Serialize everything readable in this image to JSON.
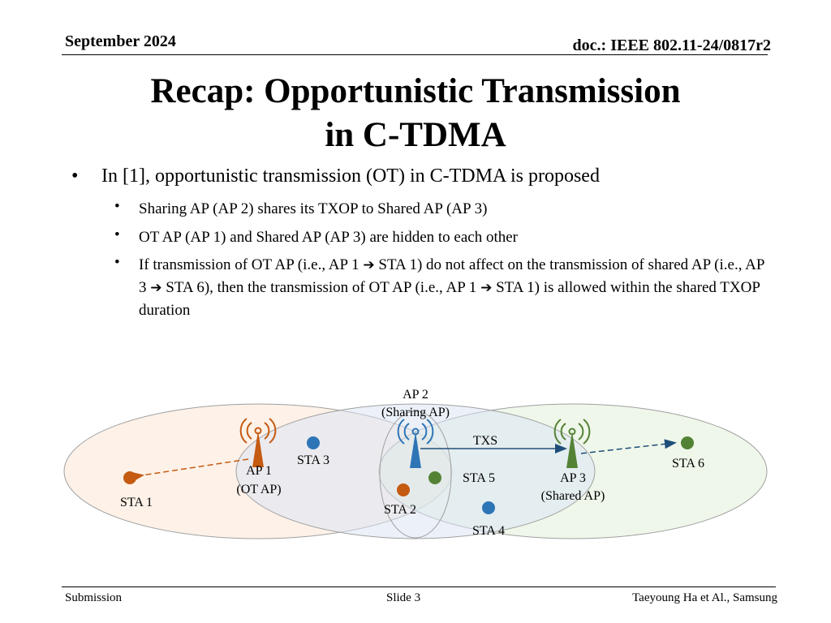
{
  "header": {
    "date": "September 2024",
    "doc_id": "doc.: IEEE 802.11-24/0817r2"
  },
  "title": {
    "line1": "Recap: Opportunistic Transmission",
    "line2": "in C-TDMA"
  },
  "bullets": {
    "main": "In [1], opportunistic transmission (OT) in C-TDMA is proposed",
    "sub1": "Sharing AP (AP 2) shares its TXOP to Shared AP (AP 3)",
    "sub2": "OT AP (AP 1) and Shared AP (AP 3) are hidden to each other",
    "sub3_a": "If transmission of OT AP (i.e., AP 1 ",
    "sub3_b": " STA 1) do not affect on the transmission of shared AP (i.e., AP 3 ",
    "sub3_c": " STA 6), then the transmission of OT AP (i.e., AP 1 ",
    "sub3_d": " STA 1) is allowed within the shared TXOP duration",
    "arrow_glyph": "➔"
  },
  "diagram": {
    "ap2_name": "AP 2",
    "ap2_role": "(Sharing AP)",
    "ap1_name": "AP 1",
    "ap1_role": "(OT AP)",
    "ap3_name": "AP 3",
    "ap3_role": "(Shared AP)",
    "sta1": "STA 1",
    "sta2": "STA 2",
    "sta3": "STA 3",
    "sta4": "STA 4",
    "sta5": "STA 5",
    "sta6": "STA 6",
    "txs": "TXS",
    "colors": {
      "orange": "#C55A11",
      "blue": "#2E75B6",
      "green": "#548235",
      "dark_blue": "#1F4E79"
    }
  },
  "footer": {
    "left": "Submission",
    "center": "Slide 3",
    "right": "Taeyoung Ha et Al., Samsung"
  }
}
